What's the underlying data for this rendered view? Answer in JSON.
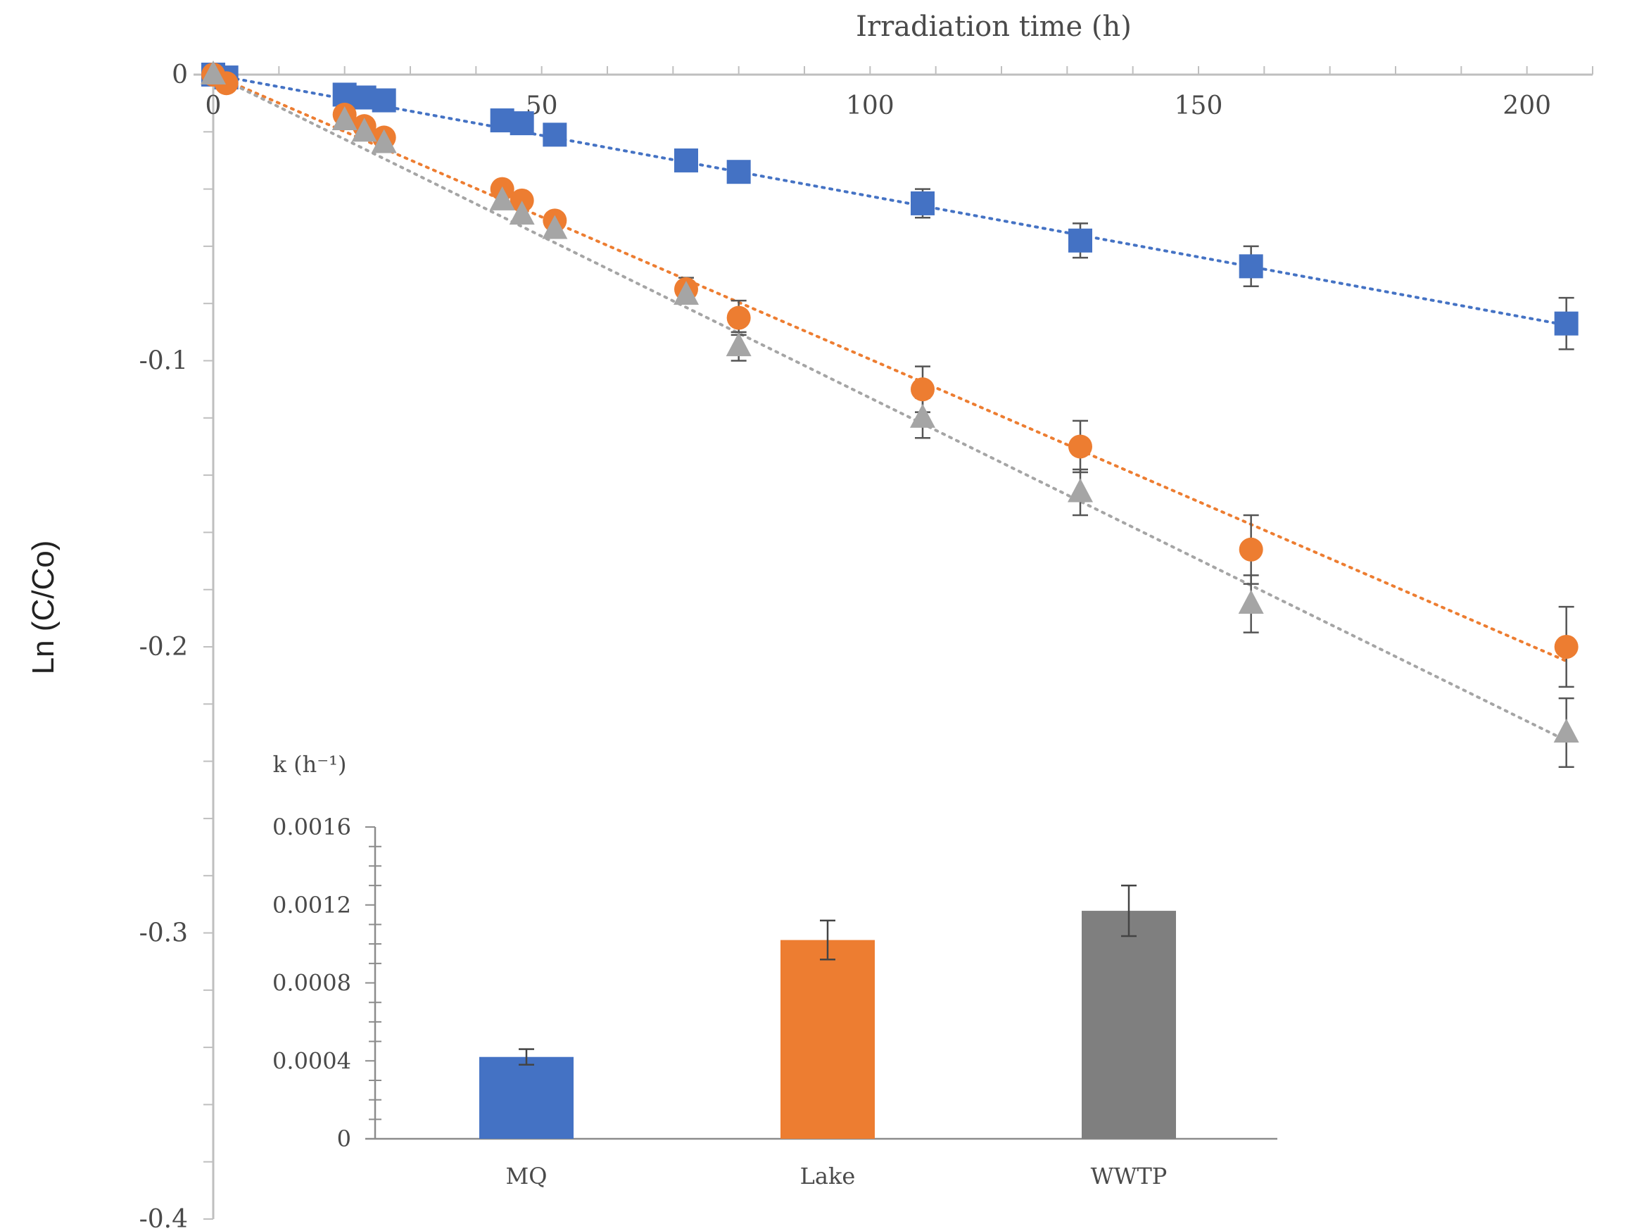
{
  "chart_data": [
    {
      "type": "scatter",
      "title": "",
      "xlabel": "Irradiation time (h)",
      "ylabel": "Ln (C/Co)",
      "xlim": [
        -3,
        210
      ],
      "ylim": [
        -0.4,
        0
      ],
      "x_ticks": [
        0,
        50,
        100,
        150,
        200
      ],
      "y_ticks": [
        0,
        -0.1,
        -0.2,
        -0.3,
        -0.4
      ],
      "x_tick_labels": [
        "0",
        "50",
        "100",
        "150",
        "200"
      ],
      "y_tick_labels": [
        "0",
        "-0.1",
        "-0.2",
        "-0.3",
        "-0.4"
      ],
      "x_axis_position": "top",
      "grid": false,
      "series": [
        {
          "name": "MQ",
          "marker": "square",
          "color": "#4472C4",
          "trendline": {
            "style": "dotted",
            "slope": -0.000425,
            "x_end": 206
          },
          "points": [
            {
              "x": 0,
              "y": 0,
              "err": 0
            },
            {
              "x": 2,
              "y": -0.001,
              "err": 0
            },
            {
              "x": 20,
              "y": -0.007,
              "err": 0
            },
            {
              "x": 23,
              "y": -0.008,
              "err": 0
            },
            {
              "x": 26,
              "y": -0.009,
              "err": 0
            },
            {
              "x": 44,
              "y": -0.016,
              "err": 0
            },
            {
              "x": 47,
              "y": -0.017,
              "err": 0
            },
            {
              "x": 52,
              "y": -0.021,
              "err": 0
            },
            {
              "x": 72,
              "y": -0.03,
              "err": 0
            },
            {
              "x": 80,
              "y": -0.034,
              "err": 0
            },
            {
              "x": 108,
              "y": -0.045,
              "err": 0.005
            },
            {
              "x": 132,
              "y": -0.058,
              "err": 0.006
            },
            {
              "x": 158,
              "y": -0.067,
              "err": 0.007
            },
            {
              "x": 206,
              "y": -0.087,
              "err": 0.009
            }
          ]
        },
        {
          "name": "Lake",
          "marker": "circle",
          "color": "#ED7D31",
          "trendline": {
            "style": "dotted",
            "slope": -0.000995,
            "x_end": 206
          },
          "points": [
            {
              "x": 0,
              "y": 0,
              "err": 0
            },
            {
              "x": 2,
              "y": -0.003,
              "err": 0
            },
            {
              "x": 20,
              "y": -0.014,
              "err": 0
            },
            {
              "x": 23,
              "y": -0.018,
              "err": 0
            },
            {
              "x": 26,
              "y": -0.022,
              "err": 0
            },
            {
              "x": 44,
              "y": -0.04,
              "err": 0
            },
            {
              "x": 47,
              "y": -0.044,
              "err": 0
            },
            {
              "x": 52,
              "y": -0.051,
              "err": 0
            },
            {
              "x": 72,
              "y": -0.075,
              "err": 0.004
            },
            {
              "x": 80,
              "y": -0.085,
              "err": 0.006
            },
            {
              "x": 108,
              "y": -0.11,
              "err": 0.008
            },
            {
              "x": 132,
              "y": -0.13,
              "err": 0.009
            },
            {
              "x": 158,
              "y": -0.166,
              "err": 0.012
            },
            {
              "x": 206,
              "y": -0.2,
              "err": 0.014
            }
          ]
        },
        {
          "name": "WWTP",
          "marker": "triangle",
          "color": "#A5A5A5",
          "trendline": {
            "style": "dotted",
            "slope": -0.00113,
            "x_end": 206
          },
          "points": [
            {
              "x": 0,
              "y": 0,
              "err": 0
            },
            {
              "x": 20,
              "y": -0.016,
              "err": 0
            },
            {
              "x": 23,
              "y": -0.02,
              "err": 0
            },
            {
              "x": 26,
              "y": -0.024,
              "err": 0
            },
            {
              "x": 44,
              "y": -0.044,
              "err": 0
            },
            {
              "x": 47,
              "y": -0.049,
              "err": 0
            },
            {
              "x": 52,
              "y": -0.054,
              "err": 0
            },
            {
              "x": 72,
              "y": -0.077,
              "err": 0
            },
            {
              "x": 80,
              "y": -0.095,
              "err": 0.005
            },
            {
              "x": 108,
              "y": -0.12,
              "err": 0.007
            },
            {
              "x": 132,
              "y": -0.146,
              "err": 0.008
            },
            {
              "x": 158,
              "y": -0.185,
              "err": 0.01
            },
            {
              "x": 206,
              "y": -0.23,
              "err": 0.012
            }
          ]
        }
      ]
    },
    {
      "type": "bar",
      "title": "k (h⁻¹)",
      "categories": [
        "MQ",
        "Lake",
        "WWTP"
      ],
      "values": [
        0.00042,
        0.00102,
        0.00117
      ],
      "errors": [
        4e-05,
        0.0001,
        0.00013
      ],
      "colors": [
        "#4472C4",
        "#ED7D31",
        "#7F7F7F"
      ],
      "ylim": [
        0,
        0.0016
      ],
      "y_ticks": [
        0,
        0.0004,
        0.0008,
        0.0012,
        0.0016
      ],
      "y_tick_labels": [
        "0",
        "0.0004",
        "0.0008",
        "0.0012",
        "0.0016"
      ],
      "grid": false
    }
  ]
}
